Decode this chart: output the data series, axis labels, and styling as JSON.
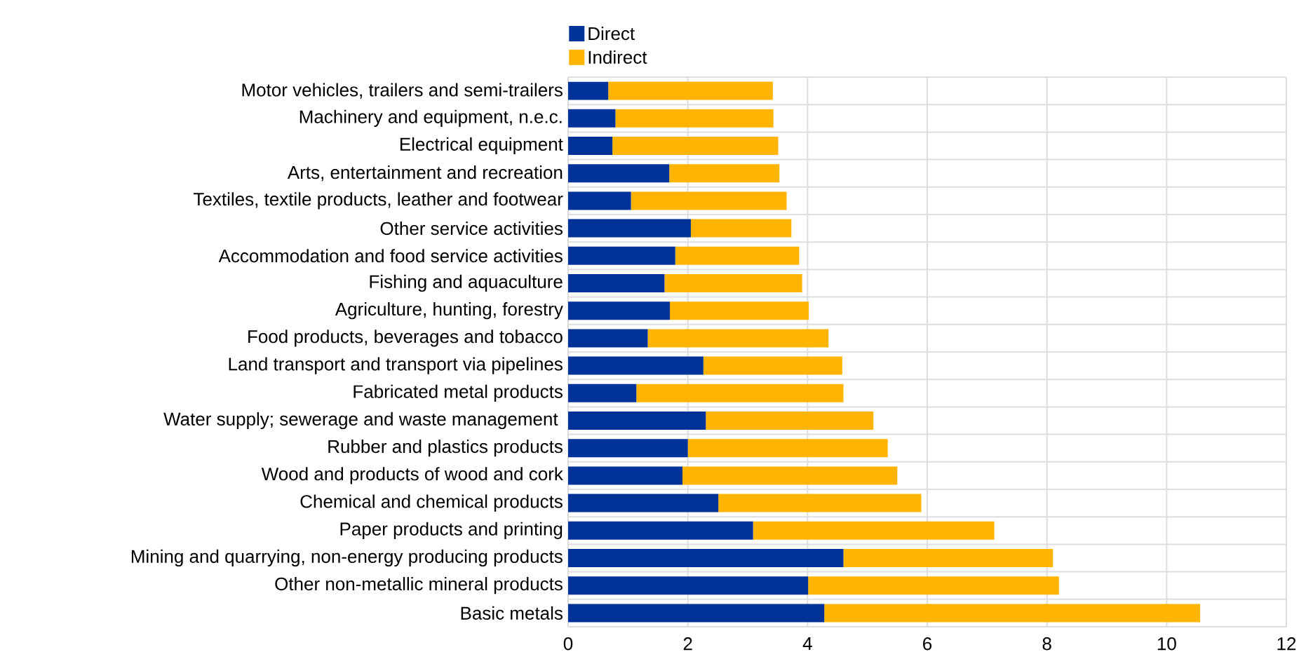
{
  "chart_data": {
    "type": "bar",
    "orientation": "horizontal",
    "stacked": true,
    "categories": [
      "Motor vehicles, trailers and semi-trailers",
      "Machinery and equipment, n.e.c.",
      "Electrical equipment",
      "Arts, entertainment and recreation",
      "Textiles, textile products, leather and footwear",
      "Other service activities",
      "Accommodation and food service activities",
      "Fishing and aquaculture",
      "Agriculture, hunting, forestry",
      "Food products, beverages and tobacco",
      "Land transport and transport via pipelines",
      "Fabricated metal products",
      "Water supply; sewerage and waste management ",
      "Rubber and plastics products",
      "Wood and products of wood and cork",
      "Chemical and chemical products",
      "Paper products and printing",
      "Mining and quarrying, non-energy producing products",
      "Other non-metallic mineral products",
      "Basic metals"
    ],
    "series": [
      {
        "name": "Direct",
        "color": "#003399",
        "values": [
          0.67,
          0.79,
          0.74,
          1.69,
          1.05,
          2.05,
          1.79,
          1.61,
          1.7,
          1.33,
          2.26,
          1.14,
          2.3,
          2.0,
          1.91,
          2.51,
          3.09,
          4.6,
          4.01,
          4.28
        ]
      },
      {
        "name": "Indirect",
        "color": "#ffb400",
        "values": [
          2.75,
          2.64,
          2.77,
          1.84,
          2.6,
          1.68,
          2.07,
          2.3,
          2.32,
          3.02,
          2.32,
          3.46,
          2.8,
          3.34,
          3.59,
          3.39,
          4.03,
          3.5,
          4.19,
          6.28
        ]
      }
    ],
    "xlim": [
      0,
      12
    ],
    "xticks": [
      0,
      2,
      4,
      6,
      8,
      10,
      12
    ],
    "grid": true,
    "legend": "top left"
  }
}
